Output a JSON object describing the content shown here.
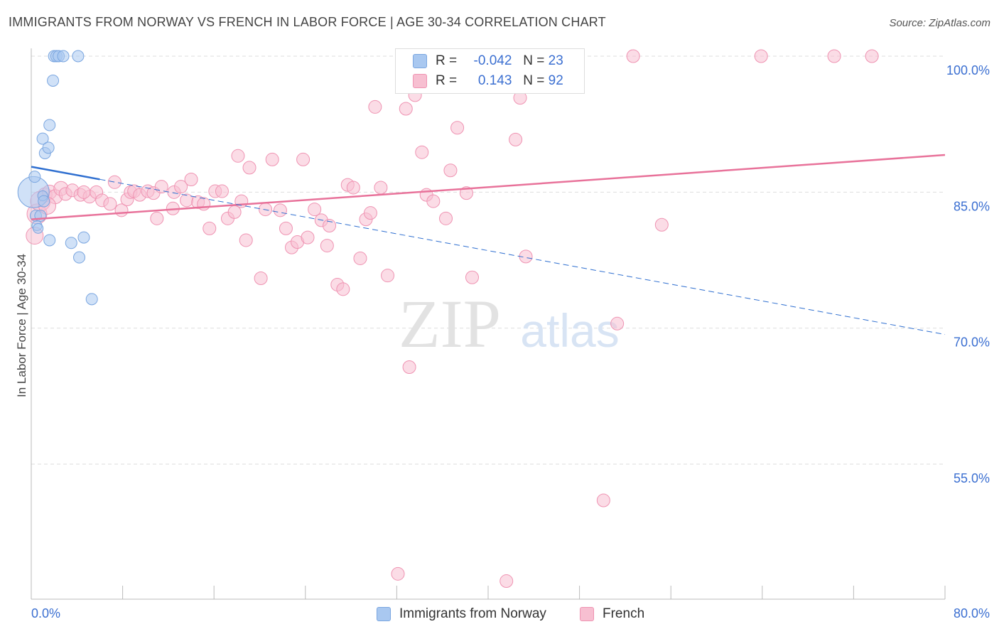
{
  "header": {
    "title": "IMMIGRANTS FROM NORWAY VS FRENCH IN LABOR FORCE | AGE 30-34 CORRELATION CHART",
    "source": "Source: ZipAtlas.com"
  },
  "watermark": {
    "zip": "ZIP",
    "atlas": "atlas"
  },
  "legend_top": {
    "rows": [
      {
        "r_label": "R =",
        "r_value": "-0.042",
        "n_label": "N =",
        "n_value": "23"
      },
      {
        "r_label": "R =",
        "r_value": "0.143",
        "n_label": "N =",
        "n_value": "92"
      }
    ]
  },
  "legend_bottom": {
    "series1": "Immigrants from Norway",
    "series2": "French"
  },
  "colors": {
    "norway_fill": "#a9c8f0",
    "norway_stroke": "#7aa6e0",
    "norway_line": "#2f6fd0",
    "french_fill": "#f7bfd1",
    "french_stroke": "#ef93b2",
    "french_line": "#e8729a",
    "axis_label": "#3b6fd1",
    "grid": "#dddddd"
  },
  "chart_data": {
    "type": "scatter",
    "xlabel": "",
    "ylabel": "In Labor Force | Age 30-34",
    "xlim": [
      0,
      80
    ],
    "ylim": [
      40,
      105
    ],
    "x_tick_labels": [
      "0.0%",
      "80.0%"
    ],
    "y_ticks": [
      55,
      70,
      85,
      100
    ],
    "y_tick_labels": [
      "55.0%",
      "70.0%",
      "85.0%",
      "100.0%"
    ],
    "grid": true,
    "legend": "top-center",
    "series": [
      {
        "name": "Immigrants from Norway",
        "r": -0.042,
        "n": 23,
        "trend": {
          "x": [
            0,
            80
          ],
          "y": [
            87.8,
            69.3
          ],
          "solid_until_x": 6
        },
        "points": [
          [
            0.2,
            85.0,
            22
          ],
          [
            0.3,
            86.7,
            8
          ],
          [
            0.4,
            82.4,
            8
          ],
          [
            0.5,
            81.3,
            7
          ],
          [
            0.6,
            81.0,
            7
          ],
          [
            1.0,
            84.6,
            7
          ],
          [
            1.1,
            84.0,
            8
          ],
          [
            1.0,
            90.9,
            8
          ],
          [
            1.2,
            89.3,
            8
          ],
          [
            1.5,
            89.9,
            8
          ],
          [
            1.6,
            92.4,
            8
          ],
          [
            1.6,
            79.7,
            8
          ],
          [
            1.9,
            97.3,
            8
          ],
          [
            2.0,
            100.0,
            8
          ],
          [
            2.2,
            100.0,
            8
          ],
          [
            2.4,
            100.0,
            8
          ],
          [
            2.8,
            100.0,
            8
          ],
          [
            4.1,
            100.0,
            8
          ],
          [
            3.5,
            79.4,
            8
          ],
          [
            4.2,
            77.8,
            8
          ],
          [
            4.6,
            80.0,
            8
          ],
          [
            5.3,
            73.2,
            8
          ],
          [
            0.8,
            82.4,
            8
          ]
        ]
      },
      {
        "name": "French",
        "r": 0.143,
        "n": 92,
        "trend": {
          "x": [
            0,
            80
          ],
          "y": [
            82.0,
            89.1
          ]
        },
        "points": [
          [
            0.3,
            80.2,
            12
          ],
          [
            0.5,
            82.6,
            14
          ],
          [
            0.8,
            84.0,
            14
          ],
          [
            1.2,
            84.7,
            10
          ],
          [
            1.6,
            85.0,
            10
          ],
          [
            2.1,
            84.5,
            10
          ],
          [
            2.6,
            85.4,
            10
          ],
          [
            3.0,
            84.8,
            9
          ],
          [
            3.6,
            85.2,
            9
          ],
          [
            4.3,
            84.7,
            9
          ],
          [
            5.1,
            84.5,
            9
          ],
          [
            5.7,
            85.0,
            9
          ],
          [
            6.2,
            84.1,
            9
          ],
          [
            6.9,
            83.7,
            9
          ],
          [
            7.3,
            86.1,
            9
          ],
          [
            7.9,
            83.0,
            9
          ],
          [
            8.4,
            84.2,
            9
          ],
          [
            8.7,
            85.0,
            9
          ],
          [
            9.0,
            85.1,
            9
          ],
          [
            9.5,
            84.7,
            9
          ],
          [
            10.2,
            85.1,
            9
          ],
          [
            10.7,
            84.9,
            9
          ],
          [
            11.0,
            82.1,
            9
          ],
          [
            11.4,
            85.6,
            9
          ],
          [
            12.5,
            85.0,
            9
          ],
          [
            12.4,
            83.2,
            9
          ],
          [
            13.1,
            85.6,
            9
          ],
          [
            13.6,
            84.1,
            9
          ],
          [
            14.0,
            86.4,
            9
          ],
          [
            14.6,
            83.9,
            9
          ],
          [
            15.1,
            83.7,
            9
          ],
          [
            15.6,
            81.0,
            9
          ],
          [
            16.1,
            85.1,
            9
          ],
          [
            16.7,
            85.1,
            9
          ],
          [
            17.2,
            82.1,
            9
          ],
          [
            17.8,
            82.8,
            9
          ],
          [
            18.1,
            89.0,
            9
          ],
          [
            18.4,
            84.0,
            9
          ],
          [
            18.8,
            79.7,
            9
          ],
          [
            19.1,
            87.7,
            9
          ],
          [
            20.1,
            75.5,
            9
          ],
          [
            20.5,
            83.1,
            9
          ],
          [
            21.1,
            88.6,
            9
          ],
          [
            21.8,
            83.0,
            9
          ],
          [
            22.3,
            81.0,
            9
          ],
          [
            22.8,
            78.9,
            9
          ],
          [
            23.3,
            79.5,
            9
          ],
          [
            23.8,
            88.6,
            9
          ],
          [
            24.2,
            80.0,
            9
          ],
          [
            24.8,
            83.1,
            9
          ],
          [
            25.4,
            81.9,
            9
          ],
          [
            25.9,
            79.1,
            9
          ],
          [
            26.1,
            81.3,
            9
          ],
          [
            26.8,
            74.8,
            9
          ],
          [
            27.3,
            74.3,
            9
          ],
          [
            27.7,
            85.8,
            9
          ],
          [
            28.2,
            85.5,
            9
          ],
          [
            28.8,
            77.7,
            9
          ],
          [
            29.3,
            82.0,
            9
          ],
          [
            29.7,
            82.7,
            9
          ],
          [
            30.1,
            94.4,
            9
          ],
          [
            30.6,
            85.5,
            9
          ],
          [
            31.2,
            75.8,
            9
          ],
          [
            32.1,
            42.9,
            9
          ],
          [
            32.8,
            94.2,
            9
          ],
          [
            33.1,
            65.7,
            9
          ],
          [
            33.6,
            95.7,
            9
          ],
          [
            34.2,
            89.4,
            9
          ],
          [
            34.6,
            84.7,
            9
          ],
          [
            35.2,
            84.0,
            9
          ],
          [
            35.8,
            100.0,
            9
          ],
          [
            36.3,
            82.1,
            9
          ],
          [
            36.7,
            87.4,
            9
          ],
          [
            37.3,
            92.1,
            9
          ],
          [
            38.1,
            84.9,
            9
          ],
          [
            38.6,
            75.6,
            9
          ],
          [
            40.1,
            100.0,
            9
          ],
          [
            41.6,
            42.1,
            9
          ],
          [
            42.4,
            90.8,
            9
          ],
          [
            42.8,
            95.4,
            9
          ],
          [
            43.3,
            77.9,
            9
          ],
          [
            45.1,
            100.0,
            9
          ],
          [
            47.2,
            100.0,
            9
          ],
          [
            50.1,
            51.0,
            9
          ],
          [
            51.3,
            70.5,
            9
          ],
          [
            52.7,
            100.0,
            9
          ],
          [
            55.2,
            81.4,
            9
          ],
          [
            63.9,
            100.0,
            9
          ],
          [
            70.3,
            100.0,
            9
          ],
          [
            73.6,
            100.0,
            9
          ],
          [
            1.4,
            83.5,
            12
          ],
          [
            4.6,
            85.0,
            9
          ]
        ]
      }
    ]
  }
}
